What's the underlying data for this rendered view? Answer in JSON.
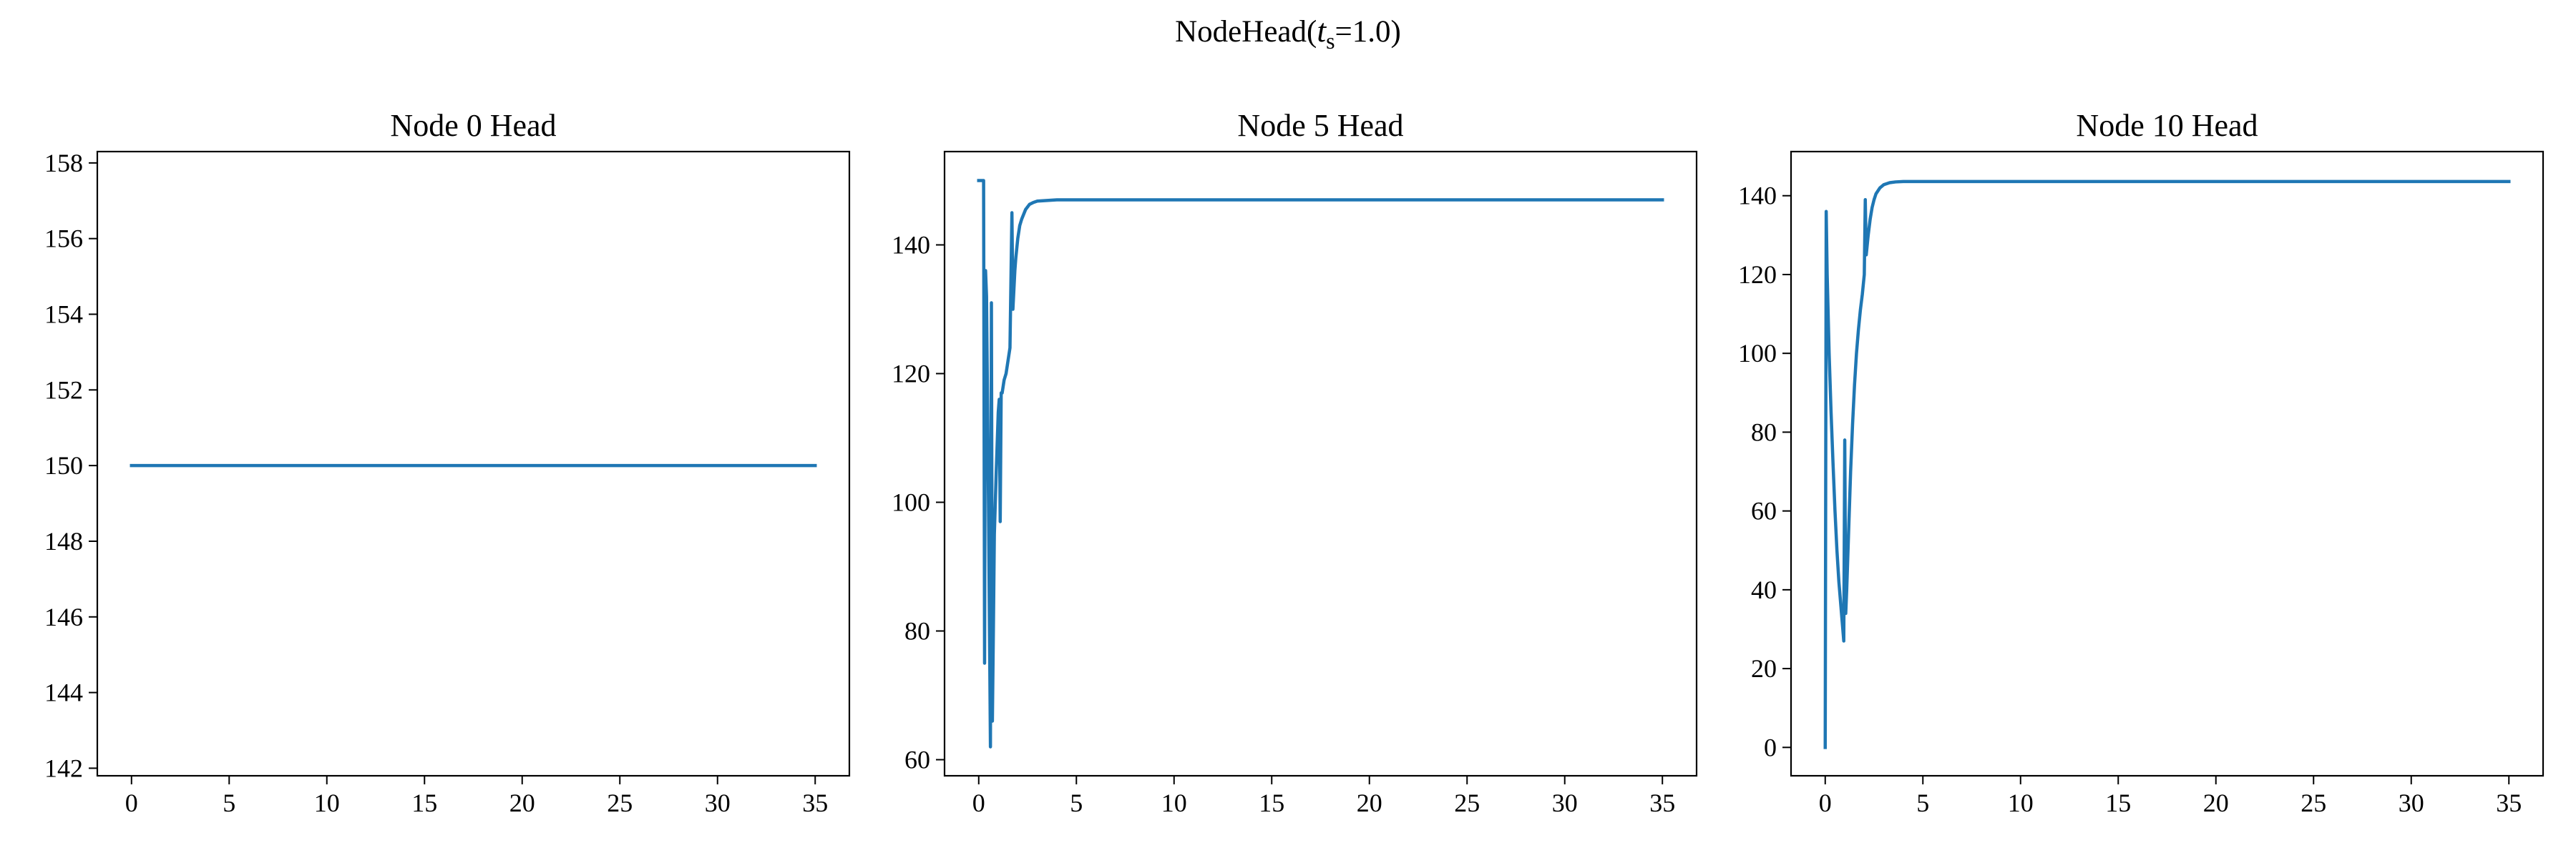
{
  "figure": {
    "title_prefix": "NodeHead(",
    "title_symbol": "t",
    "title_subscript": "s",
    "title_suffix": "=1.0)"
  },
  "colors": {
    "line": "#1f77b4",
    "axes": "#000000"
  },
  "chart_data": [
    {
      "type": "line",
      "title": "Node 0 Head",
      "xlabel": "",
      "ylabel": "",
      "xlim": [
        -1.75,
        36.75
      ],
      "ylim": [
        141.8,
        158.3
      ],
      "xticks": [
        0,
        5,
        10,
        15,
        20,
        25,
        30,
        35
      ],
      "yticks": [
        142,
        144,
        146,
        148,
        150,
        152,
        154,
        156,
        158
      ],
      "grid": false,
      "series": [
        {
          "x": [
            0,
            35
          ],
          "y": [
            150,
            150
          ]
        }
      ]
    },
    {
      "type": "line",
      "title": "Node 5 Head",
      "xlabel": "",
      "ylabel": "",
      "xlim": [
        -1.75,
        36.75
      ],
      "ylim": [
        57.5,
        154.5
      ],
      "xticks": [
        0,
        5,
        10,
        15,
        20,
        25,
        30,
        35
      ],
      "yticks": [
        60,
        80,
        100,
        120,
        140
      ],
      "grid": false,
      "series": [
        {
          "x": [
            0,
            0.15,
            0.25,
            0.3,
            0.35,
            0.4,
            0.5,
            0.6,
            0.65,
            0.7,
            0.75,
            0.8,
            0.9,
            1.0,
            1.05,
            1.1,
            1.15,
            1.2,
            1.25,
            1.3,
            1.4,
            1.5,
            1.6,
            1.7,
            1.75,
            1.8,
            1.85,
            1.9,
            2.0,
            2.1,
            2.2,
            2.4,
            2.6,
            2.8,
            3.0,
            3.5,
            4,
            5,
            35
          ],
          "y": [
            150,
            150,
            150,
            75,
            136,
            132,
            100,
            62,
            131,
            66,
            80,
            95,
            105,
            114,
            116,
            97,
            117,
            117,
            118,
            119,
            120,
            122,
            124,
            145,
            130,
            133,
            136,
            138,
            141,
            143,
            144,
            145.5,
            146.3,
            146.6,
            146.8,
            146.9,
            147,
            147,
            147
          ]
        }
      ]
    },
    {
      "type": "line",
      "title": "Node 10 Head",
      "xlabel": "",
      "ylabel": "",
      "xlim": [
        -1.75,
        36.75
      ],
      "ylim": [
        -7.2,
        151.2
      ],
      "xticks": [
        0,
        5,
        10,
        15,
        20,
        25,
        30,
        35
      ],
      "yticks": [
        0,
        20,
        40,
        60,
        80,
        100,
        120,
        140
      ],
      "grid": false,
      "series": [
        {
          "x": [
            0,
            0.05,
            0.1,
            0.2,
            0.3,
            0.4,
            0.5,
            0.6,
            0.7,
            0.8,
            0.9,
            0.95,
            1.0,
            1.05,
            1.1,
            1.2,
            1.3,
            1.4,
            1.5,
            1.6,
            1.7,
            1.8,
            1.9,
            2.0,
            2.05,
            2.1,
            2.2,
            2.3,
            2.4,
            2.5,
            2.6,
            2.8,
            3.0,
            3.3,
            3.6,
            4,
            5,
            35
          ],
          "y": [
            0,
            136,
            120,
            100,
            85,
            72,
            60,
            50,
            42,
            36,
            30,
            27,
            78,
            34,
            40,
            55,
            70,
            82,
            92,
            100,
            106,
            111,
            115,
            120,
            139,
            125,
            130,
            134,
            137,
            139,
            140.5,
            142,
            142.8,
            143.3,
            143.5,
            143.6,
            143.6,
            143.6
          ]
        }
      ]
    }
  ]
}
